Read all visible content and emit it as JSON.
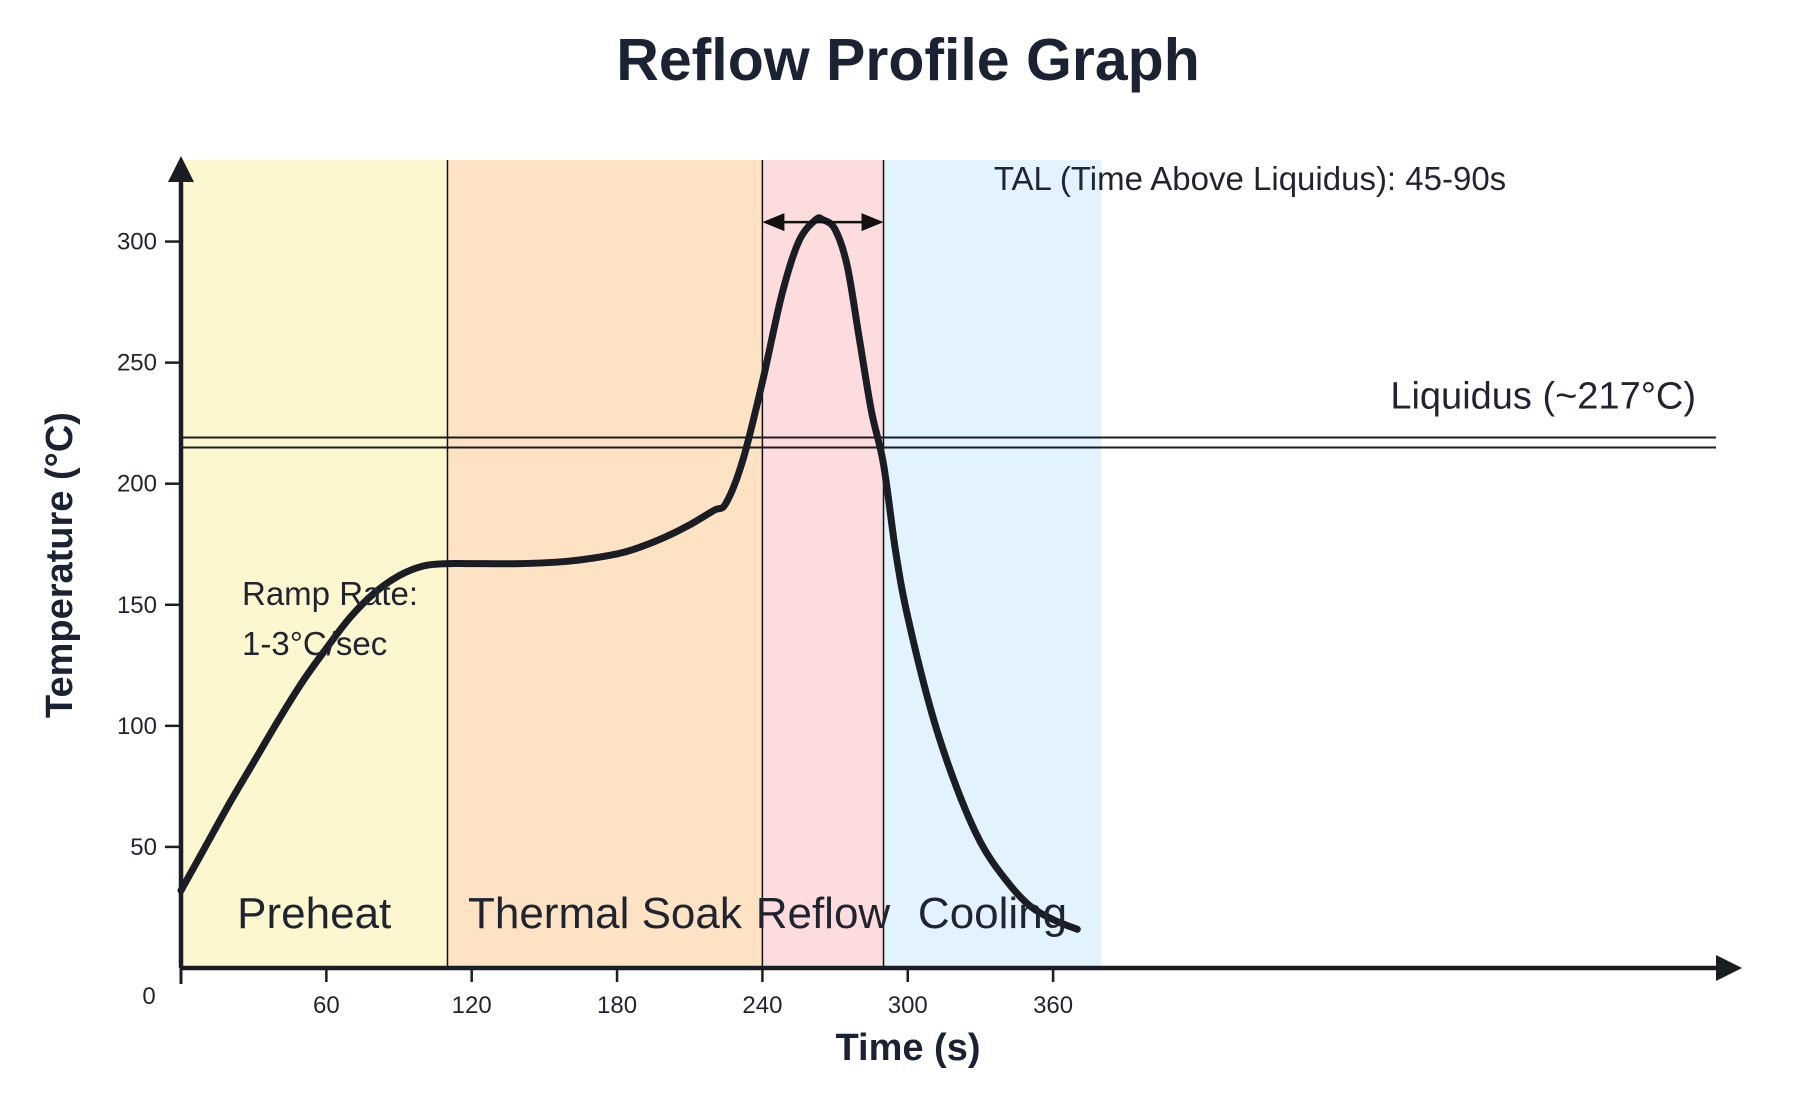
{
  "chart_data": {
    "type": "line",
    "title": "Reflow Profile Graph",
    "xlabel": "Time (s)",
    "ylabel": "Temperature (°C)",
    "xlim": [
      0,
      380
    ],
    "ylim": [
      0,
      330
    ],
    "x_ticks": [
      {
        "value": 60,
        "label": "60"
      },
      {
        "value": 120,
        "label": "120"
      },
      {
        "value": 180,
        "label": "180"
      },
      {
        "value": 240,
        "label": "240"
      },
      {
        "value": 300,
        "label": "300"
      },
      {
        "value": 360,
        "label": "360"
      }
    ],
    "y_ticks": [
      {
        "value": 50,
        "label": "50"
      },
      {
        "value": 100,
        "label": "100"
      },
      {
        "value": 150,
        "label": "150"
      },
      {
        "value": 200,
        "label": "200"
      },
      {
        "value": 250,
        "label": "250"
      },
      {
        "value": 300,
        "label": "300"
      }
    ],
    "origin_label": "0",
    "grid": false,
    "phases": [
      {
        "name": "Preheat",
        "start": 0,
        "end": 110,
        "color": "#fdf7cf"
      },
      {
        "name": "Thermal Soak",
        "start": 110,
        "end": 240,
        "color": "#fde2c4"
      },
      {
        "name": "Reflow",
        "start": 240,
        "end": 290,
        "color": "#fddcdd"
      },
      {
        "name": "Cooling",
        "start": 290,
        "end": 380,
        "color": "#e2f3fd"
      }
    ],
    "series": [
      {
        "color": "#1a1d24",
        "x": [
          0,
          10,
          20,
          30,
          40,
          50,
          60,
          70,
          80,
          90,
          100,
          110,
          120,
          140,
          160,
          180,
          190,
          200,
          210,
          220,
          225,
          232,
          240,
          248,
          255,
          262,
          265,
          270,
          275,
          280,
          285,
          290,
          295,
          300,
          310,
          320,
          330,
          340,
          350,
          360,
          370
        ],
        "y": [
          32,
          50,
          68,
          85,
          102,
          118,
          132,
          145,
          155,
          162,
          166,
          167,
          167,
          167,
          168,
          171,
          174,
          178,
          183,
          189,
          192,
          210,
          242,
          278,
          300,
          309,
          309,
          305,
          290,
          260,
          230,
          208,
          172,
          145,
          105,
          75,
          52,
          37,
          26,
          20,
          16
        ]
      }
    ],
    "liquidus": {
      "value": 217,
      "label": "Liquidus (~217°C)"
    },
    "tal": {
      "start": 240,
      "end": 290,
      "level": 308,
      "label": "TAL (Time Above Liquidus): 45-90s"
    },
    "ramp_annotation": {
      "line1": "Ramp Rate:",
      "line2": "1-3°C/sec"
    }
  }
}
